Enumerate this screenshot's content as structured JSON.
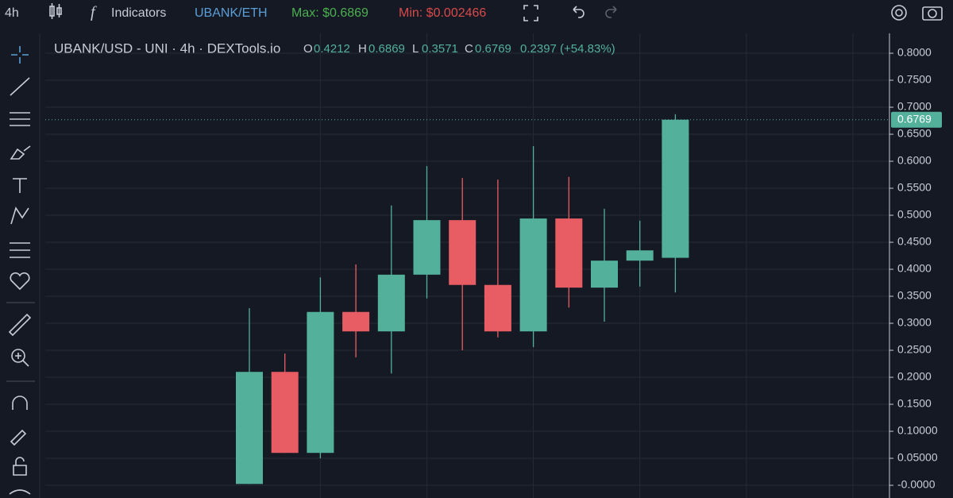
{
  "toolbar": {
    "interval": "4h",
    "indicators": "Indicators",
    "pair": "UBANK/ETH",
    "max": "Max: $0.6869",
    "min": "Min: $0.002466"
  },
  "chart_data": {
    "type": "candlestick",
    "title": "UBANK/USD - UNI · 4h · DEXTools.io",
    "ohlc_labels": [
      "O",
      "H",
      "L",
      "C"
    ],
    "change": "0.2397 (+54.83%)",
    "categories": [
      null,
      null,
      null,
      null,
      null,
      null,
      null,
      null,
      null,
      null,
      null,
      null,
      null
    ],
    "open": [
      0.0025,
      0.21,
      0.06,
      0.321,
      0.285,
      0.39,
      0.491,
      0.371,
      0.285,
      0.494,
      0.366,
      0.416,
      0.4212
    ],
    "high": [
      0.328,
      0.244,
      0.385,
      0.409,
      0.518,
      0.591,
      0.569,
      0.566,
      0.628,
      0.571,
      0.512,
      0.49,
      0.6869
    ],
    "low": [
      0.0025,
      0.06,
      0.05,
      0.237,
      0.207,
      0.346,
      0.25,
      0.274,
      0.256,
      0.329,
      0.303,
      0.368,
      0.3571
    ],
    "close": [
      0.21,
      0.06,
      0.321,
      0.285,
      0.39,
      0.491,
      0.371,
      0.285,
      0.494,
      0.366,
      0.416,
      0.435,
      0.6769
    ],
    "up_color": "#53b09b",
    "down_color": "#e85d63",
    "ylim": [
      -0.0235,
      0.8368
    ],
    "yticks": [
      {
        "value": 0.8,
        "label": "0.8000"
      },
      {
        "value": 0.75,
        "label": "0.7500"
      },
      {
        "value": 0.7,
        "label": "0.7000"
      },
      {
        "value": 0.65,
        "label": "0.6500"
      },
      {
        "value": 0.6,
        "label": "0.6000"
      },
      {
        "value": 0.55,
        "label": "0.5500"
      },
      {
        "value": 0.5,
        "label": "0.5000"
      },
      {
        "value": 0.45,
        "label": "0.4500"
      },
      {
        "value": 0.4,
        "label": "0.4000"
      },
      {
        "value": 0.35,
        "label": "0.3500"
      },
      {
        "value": 0.3,
        "label": "0.3000"
      },
      {
        "value": 0.25,
        "label": "0.2500"
      },
      {
        "value": 0.2,
        "label": "0.2000"
      },
      {
        "value": 0.15,
        "label": "0.1500"
      },
      {
        "value": 0.1,
        "label": "0.10000"
      },
      {
        "value": 0.05,
        "label": "0.05000"
      },
      {
        "value": 0,
        "label": "-0.0000"
      }
    ],
    "grid": true
  }
}
